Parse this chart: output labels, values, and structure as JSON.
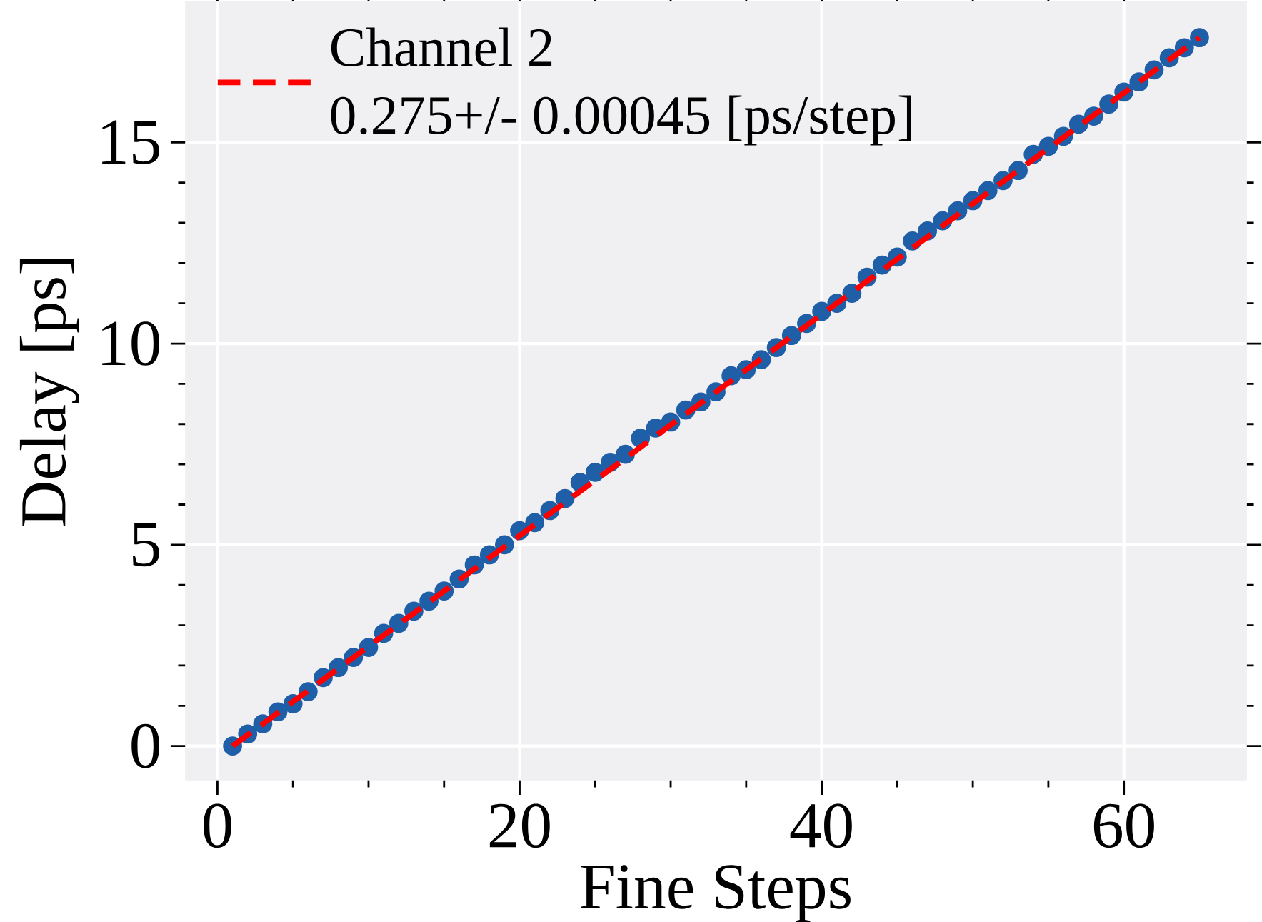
{
  "chart_data": {
    "type": "scatter",
    "xlabel": "Fine Steps",
    "ylabel": "Delay [ps]",
    "legend_title": "Channel 2",
    "xlim": [
      -2.1,
      68.1
    ],
    "ylim": [
      -0.84,
      18.5
    ],
    "xticks": [
      0,
      20,
      40,
      60
    ],
    "yticks": [
      0,
      5,
      10,
      15
    ],
    "grid": true,
    "legend": "top left",
    "series": [
      {
        "type": "scatter",
        "color": "#1f5fa8",
        "marker": "circle",
        "x": [
          1,
          2,
          3,
          4,
          5,
          6,
          7,
          8,
          9,
          10,
          11,
          12,
          13,
          14,
          15,
          16,
          17,
          18,
          19,
          20,
          21,
          22,
          23,
          24,
          25,
          26,
          27,
          28,
          29,
          30,
          31,
          32,
          33,
          34,
          35,
          36,
          37,
          38,
          39,
          40,
          41,
          42,
          43,
          44,
          45,
          46,
          47,
          48,
          49,
          50,
          51,
          52,
          53,
          54,
          55,
          56,
          57,
          58,
          59,
          60,
          61,
          62,
          63,
          64,
          65
        ],
        "values": [
          0,
          0.3,
          0.55,
          0.85,
          1.05,
          1.35,
          1.7,
          1.95,
          2.2,
          2.45,
          2.8,
          3.05,
          3.35,
          3.6,
          3.85,
          4.15,
          4.5,
          4.75,
          5.0,
          5.35,
          5.55,
          5.85,
          6.15,
          6.55,
          6.8,
          7.05,
          7.25,
          7.65,
          7.9,
          8.05,
          8.35,
          8.55,
          8.8,
          9.2,
          9.35,
          9.6,
          9.9,
          10.2,
          10.5,
          10.8,
          11.0,
          11.25,
          11.65,
          11.95,
          12.15,
          12.55,
          12.8,
          13.05,
          13.3,
          13.55,
          13.8,
          14.05,
          14.3,
          14.7,
          14.9,
          15.15,
          15.45,
          15.65,
          15.95,
          16.25,
          16.5,
          16.8,
          17.1,
          17.35,
          17.6
        ]
      },
      {
        "type": "line",
        "name": "0.275+/- 0.00045 [ps/step]",
        "color": "#ff0000",
        "line_style": "dashed",
        "marker": "none",
        "x": [
          1,
          65
        ],
        "values": [
          0,
          17.6
        ]
      }
    ]
  }
}
